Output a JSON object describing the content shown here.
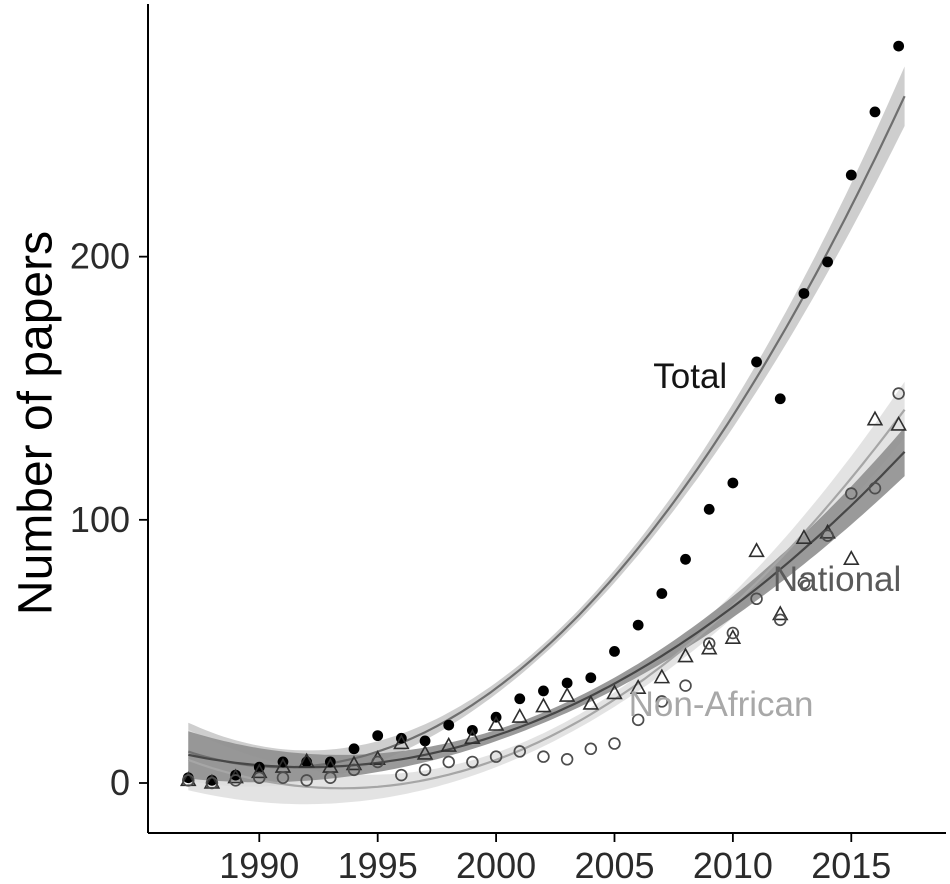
{
  "chart_data": {
    "type": "scatter",
    "title": "",
    "xlabel": "",
    "ylabel": "Number of papers",
    "xlim": [
      1985.3,
      2019.0
    ],
    "ylim": [
      -19,
      296
    ],
    "x_ticks": [
      "1990",
      "1995",
      "2000",
      "2005",
      "2010",
      "2015"
    ],
    "y_ticks": [
      "0",
      "100",
      "200"
    ],
    "grid": false,
    "legend": "inline-labels",
    "background": "#ffffff",
    "axis_color": "#000000",
    "tick_label_color": "#2b2b2b",
    "trend_range": [
      1987.0,
      2017.4
    ],
    "years": [
      1987,
      1988,
      1989,
      1990,
      1991,
      1992,
      1993,
      1994,
      1995,
      1996,
      1997,
      1998,
      1999,
      2000,
      2001,
      2002,
      2003,
      2004,
      2005,
      2006,
      2007,
      2008,
      2009,
      2010,
      2011,
      2012,
      2013,
      2014,
      2015,
      2016,
      2017
    ],
    "series": [
      {
        "name": "Total",
        "marker": "filled-circle",
        "point_color": "#000000",
        "curve_color": "#6f6f6f",
        "ribbon_color": "#c9c9c9",
        "values": [
          2,
          1,
          3,
          6,
          8,
          8,
          8,
          13,
          18,
          17,
          16,
          22,
          20,
          25,
          32,
          35,
          38,
          40,
          50,
          60,
          72,
          85,
          104,
          114,
          160,
          146,
          186,
          198,
          231,
          255,
          280
        ],
        "trend": {
          "type": "quadratic",
          "vertex": 1991.0,
          "min": 6,
          "a": 0.37
        },
        "ribbon": {
          "base": 2,
          "amp": 9,
          "mid": 2002.0,
          "span": 15.0
        },
        "label": {
          "text": "Total",
          "x": 2008.2,
          "y": 150,
          "color": "#141414"
        }
      },
      {
        "name": "National",
        "marker": "open-triangle",
        "point_color": "#2f2f2f",
        "curve_color": "#474747",
        "ribbon_color": "#8f8f8f",
        "values": [
          1,
          0,
          2,
          4,
          6,
          8,
          6,
          7,
          9,
          15,
          11,
          14,
          17,
          22,
          25,
          29,
          33,
          30,
          34,
          36,
          40,
          48,
          51,
          55,
          88,
          64,
          93,
          95,
          85,
          138,
          136
        ],
        "trend": {
          "type": "quadratic",
          "vertex": 1992.0,
          "min": 6,
          "a": 0.188
        },
        "ribbon": {
          "base": 2,
          "amp": 7,
          "mid": 2002.0,
          "span": 15.0
        },
        "label": {
          "text": "National",
          "x": 2014.4,
          "y": 73,
          "color": "#5a5a5a"
        }
      },
      {
        "name": "Non-African",
        "marker": "open-circle",
        "point_color": "#4d4d4d",
        "curve_color": "#a6a6a6",
        "ribbon_color": "#e0e0e0",
        "values": [
          1,
          0,
          1,
          2,
          2,
          1,
          2,
          5,
          8,
          3,
          5,
          8,
          8,
          10,
          12,
          10,
          9,
          13,
          15,
          24,
          31,
          37,
          53,
          57,
          70,
          62,
          76,
          94,
          110,
          112,
          148
        ],
        "trend": {
          "type": "quadratic",
          "vertex": 1993.5,
          "min": -2,
          "a": 0.255
        },
        "ribbon": {
          "base": 2.5,
          "amp": 9,
          "mid": 2002.5,
          "span": 15.5
        },
        "label": {
          "text": "Non-African",
          "x": 2009.5,
          "y": 25.5,
          "color": "#a8a8a8"
        }
      }
    ]
  }
}
